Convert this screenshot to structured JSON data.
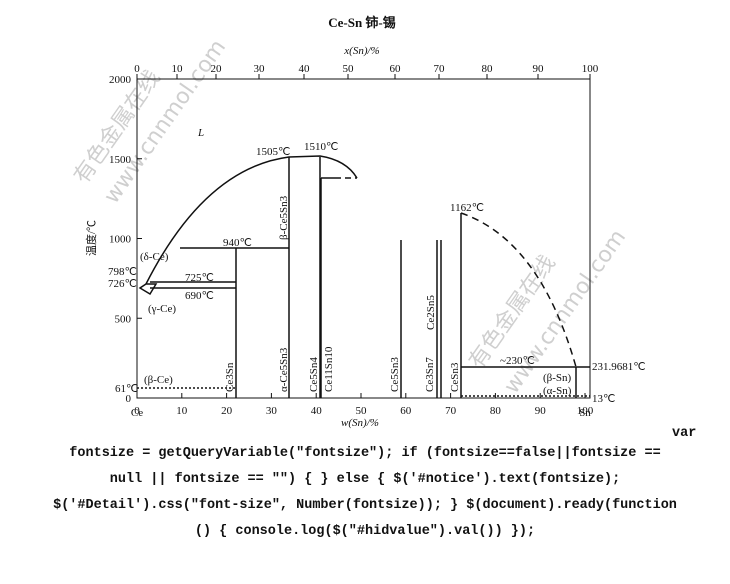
{
  "title": "Ce-Sn  铈-锡",
  "top_axis": {
    "label": "x(Sn)/%",
    "ticks": [
      0,
      10,
      20,
      30,
      40,
      50,
      60,
      70,
      80,
      90,
      100
    ]
  },
  "bottom_axis": {
    "label": "w(Sn)/%",
    "ticks": [
      0,
      10,
      20,
      30,
      40,
      50,
      60,
      70,
      80,
      90,
      100
    ],
    "left_end": "Ce",
    "right_end": "Sn"
  },
  "left_axis": {
    "label": "温度/℃",
    "ticks": [
      0,
      500,
      1000,
      1500,
      2000
    ]
  },
  "labels": [
    "L",
    "1505℃",
    "1510℃",
    "β-Ce5Sn3",
    "940℃",
    "(δ-Ce)",
    "798℃",
    "726℃",
    "725℃",
    "690℃",
    "(γ-Ce)",
    "1162℃",
    "Ce2Sn5",
    "~230℃",
    "231.9681℃",
    "(β-Sn)",
    "(α-Sn)",
    "13℃",
    "61℃",
    "(β-Ce)",
    "Ce3Sn",
    "α-Ce5Sn3",
    "Ce5Sn4",
    "Ce11Sn10",
    "Ce5Sn3",
    "Ce3Sn7",
    "CeSn3"
  ],
  "watermarks": [
    "有色金属在线",
    "www.cnnmol.com"
  ],
  "code_text": [
    "var",
    "fontsize = getQueryVariable(\"fontsize\"); if (fontsize==false||fontsize ==",
    "null || fontsize == \"\") { } else { $('#notice').text(fontsize);",
    "$('#Detail').css(\"font-size\", Number(fontsize)); } $(document).ready(function",
    "() { console.log($(\"#hidvalue\").val()) });"
  ]
}
